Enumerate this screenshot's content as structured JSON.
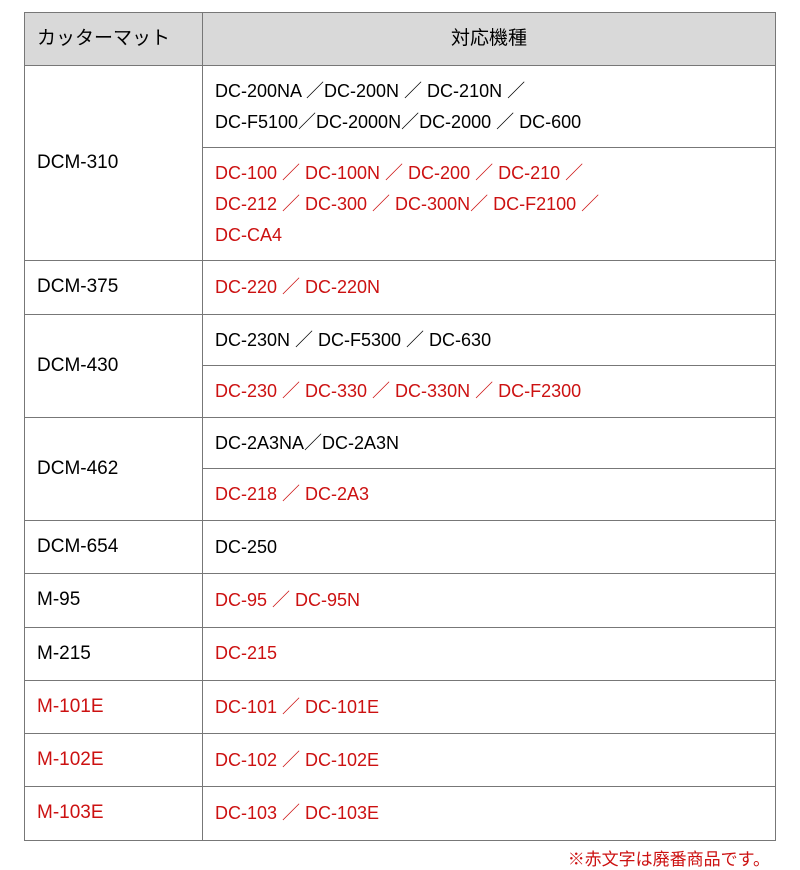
{
  "headers": {
    "mat": "カッターマット",
    "models": "対応機種"
  },
  "rows": [
    {
      "mat": {
        "text": "DCM-310",
        "red": false,
        "rowspan": 2
      },
      "cells": [
        {
          "text": "DC-200NA ／DC-200N ／ DC-210N ／\nDC-F5100／DC-2000N／DC-2000 ／ DC-600",
          "red": false
        },
        {
          "text": "DC-100 ／ DC-100N ／ DC-200 ／ DC-210 ／\nDC-212 ／ DC-300 ／ DC-300N／ DC-F2100 ／\nDC-CA4",
          "red": true
        }
      ]
    },
    {
      "mat": {
        "text": "DCM-375",
        "red": false,
        "rowspan": 1
      },
      "cells": [
        {
          "text": "DC-220 ／ DC-220N",
          "red": true
        }
      ]
    },
    {
      "mat": {
        "text": "DCM-430",
        "red": false,
        "rowspan": 2
      },
      "cells": [
        {
          "text": "DC-230N ／ DC-F5300 ／ DC-630",
          "red": false
        },
        {
          "text": "DC-230 ／ DC-330 ／ DC-330N ／ DC-F2300",
          "red": true
        }
      ]
    },
    {
      "mat": {
        "text": "DCM-462",
        "red": false,
        "rowspan": 2
      },
      "cells": [
        {
          "text": "DC-2A3NA／DC-2A3N",
          "red": false
        },
        {
          "text": "DC-218 ／ DC-2A3",
          "red": true
        }
      ]
    },
    {
      "mat": {
        "text": "DCM-654",
        "red": false,
        "rowspan": 1
      },
      "cells": [
        {
          "text": "DC-250",
          "red": false
        }
      ]
    },
    {
      "mat": {
        "text": "M-95",
        "red": false,
        "rowspan": 1
      },
      "cells": [
        {
          "text": "DC-95 ／ DC-95N",
          "red": true
        }
      ]
    },
    {
      "mat": {
        "text": "M-215",
        "red": false,
        "rowspan": 1
      },
      "cells": [
        {
          "text": "DC-215",
          "red": true
        }
      ]
    },
    {
      "mat": {
        "text": "M-101E",
        "red": true,
        "rowspan": 1
      },
      "cells": [
        {
          "text": "DC-101 ／ DC-101E",
          "red": true
        }
      ]
    },
    {
      "mat": {
        "text": "M-102E",
        "red": true,
        "rowspan": 1
      },
      "cells": [
        {
          "text": "DC-102 ／ DC-102E",
          "red": true
        }
      ]
    },
    {
      "mat": {
        "text": "M-103E",
        "red": true,
        "rowspan": 1
      },
      "cells": [
        {
          "text": "DC-103 ／ DC-103E",
          "red": true
        }
      ]
    }
  ],
  "footnote": "※赤文字は廃番商品です。",
  "colors": {
    "header_bg": "#d9d9d9",
    "border": "#777777",
    "red_text": "#cc1111",
    "black_text": "#222222",
    "background": "#ffffff"
  },
  "font_sizes": {
    "header": 19,
    "mat": 19,
    "models": 18,
    "note": 17
  }
}
